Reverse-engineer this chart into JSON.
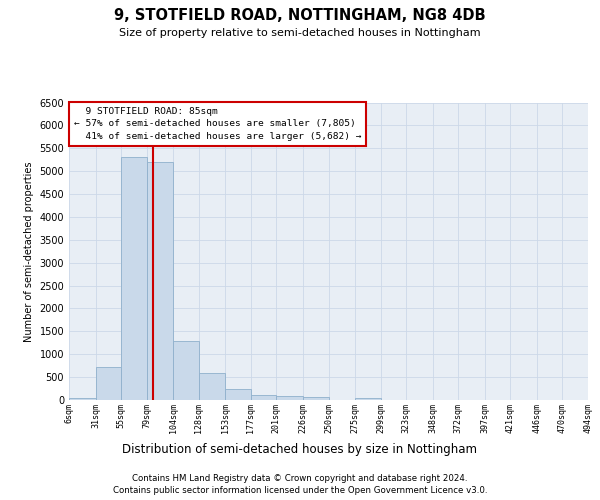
{
  "title": "9, STOTFIELD ROAD, NOTTINGHAM, NG8 4DB",
  "subtitle": "Size of property relative to semi-detached houses in Nottingham",
  "xlabel": "Distribution of semi-detached houses by size in Nottingham",
  "ylabel": "Number of semi-detached properties",
  "footnote1": "Contains HM Land Registry data © Crown copyright and database right 2024.",
  "footnote2": "Contains public sector information licensed under the Open Government Licence v3.0.",
  "property_size": 85,
  "property_label": "9 STOTFIELD ROAD: 85sqm",
  "pct_smaller": 57,
  "count_smaller": 7805,
  "pct_larger": 41,
  "count_larger": 5682,
  "bar_color": "#c9d9ea",
  "bar_edgecolor": "#8fb0cc",
  "redline_color": "#cc0000",
  "grid_color": "#ccd8e8",
  "background_color": "#e8eef5",
  "ylim_max": 6500,
  "bin_edges": [
    6,
    31,
    55,
    79,
    104,
    128,
    153,
    177,
    201,
    226,
    250,
    275,
    299,
    323,
    348,
    372,
    397,
    421,
    446,
    470,
    494
  ],
  "bin_labels": [
    "6sqm",
    "31sqm",
    "55sqm",
    "79sqm",
    "104sqm",
    "128sqm",
    "153sqm",
    "177sqm",
    "201sqm",
    "226sqm",
    "250sqm",
    "275sqm",
    "299sqm",
    "323sqm",
    "348sqm",
    "372sqm",
    "397sqm",
    "421sqm",
    "446sqm",
    "470sqm",
    "494sqm"
  ],
  "bar_heights": [
    40,
    730,
    5300,
    5200,
    1300,
    600,
    250,
    120,
    90,
    75,
    0,
    40,
    0,
    0,
    0,
    0,
    0,
    0,
    0,
    0
  ]
}
